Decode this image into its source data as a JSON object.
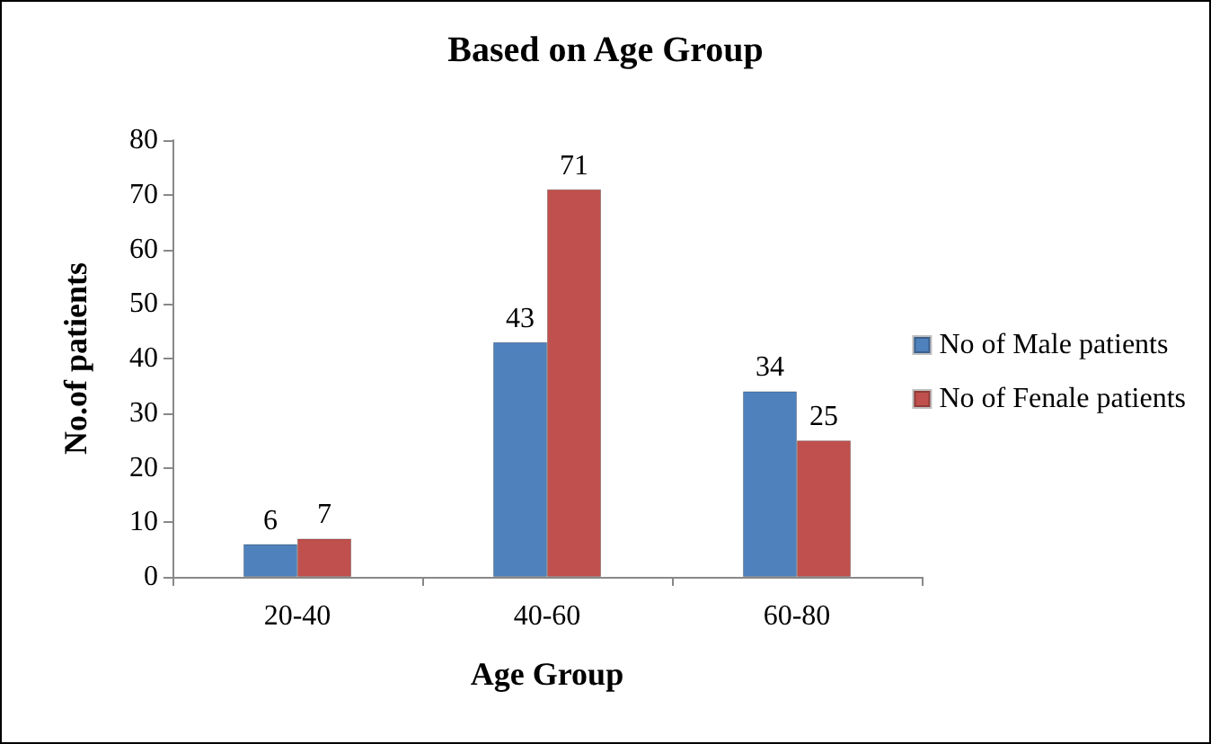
{
  "chart_data": {
    "type": "bar",
    "title": "Based on Age Group",
    "xlabel": "Age Group",
    "ylabel": "No.of patients",
    "categories": [
      "20-40",
      "40-60",
      "60-80"
    ],
    "series": [
      {
        "name": "No of Male patients",
        "color": "#4f81bd",
        "values": [
          6,
          43,
          34
        ]
      },
      {
        "name": "No of Fenale patients",
        "color": "#c0504d",
        "values": [
          7,
          71,
          25
        ]
      }
    ],
    "ylim": [
      0,
      80
    ],
    "yticks": [
      0,
      10,
      20,
      30,
      40,
      50,
      60,
      70,
      80
    ],
    "grid": false,
    "legend": "right",
    "data_labels": true
  }
}
